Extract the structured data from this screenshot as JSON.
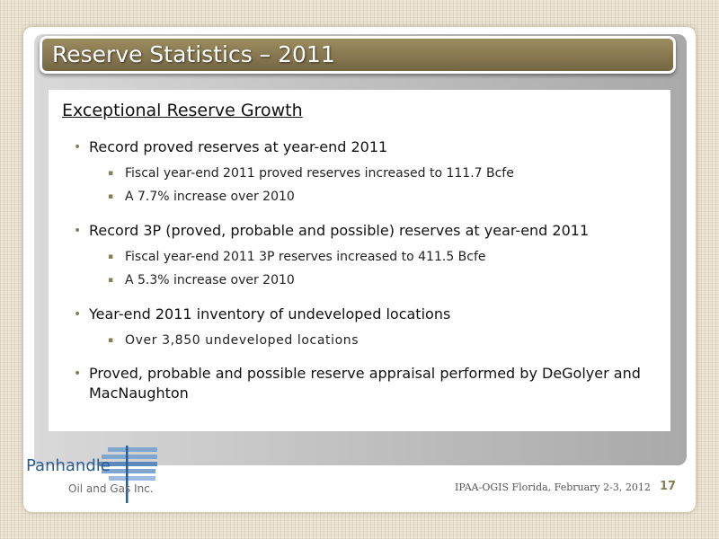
{
  "slide": {
    "title": "Reserve Statistics – 2011",
    "heading": "Exceptional Reserve Growth",
    "bullets": [
      {
        "text": "Record proved reserves at year-end 2011",
        "sub": [
          "Fiscal year-end 2011 proved reserves increased to 111.7 Bcfe",
          "A 7.7% increase over 2010"
        ]
      },
      {
        "text": "Record 3P (proved, probable and possible) reserves at year-end 2011",
        "sub": [
          "Fiscal year-end 2011 3P reserves increased to 411.5 Bcfe",
          "A 5.3% increase over 2010"
        ]
      },
      {
        "text": "Year-end 2011 inventory of undeveloped locations",
        "sub": [
          "Over 3,850 undeveloped locations"
        ]
      },
      {
        "text": "Proved, probable and possible reserve appraisal performed by DeGolyer and MacNaughton",
        "sub": []
      }
    ],
    "bullet_glyph": "•",
    "sub_glyph": "▪"
  },
  "logo": {
    "name": "Panhandle",
    "subtitle": "Oil and Gas Inc."
  },
  "footer": {
    "text": "IPAA-OGIS Florida, February 2-3, 2012",
    "page_number": "17"
  },
  "colors": {
    "title_bar": "#867750",
    "bullet": "#8b7d52",
    "logo_blue": "#2a5c91"
  }
}
